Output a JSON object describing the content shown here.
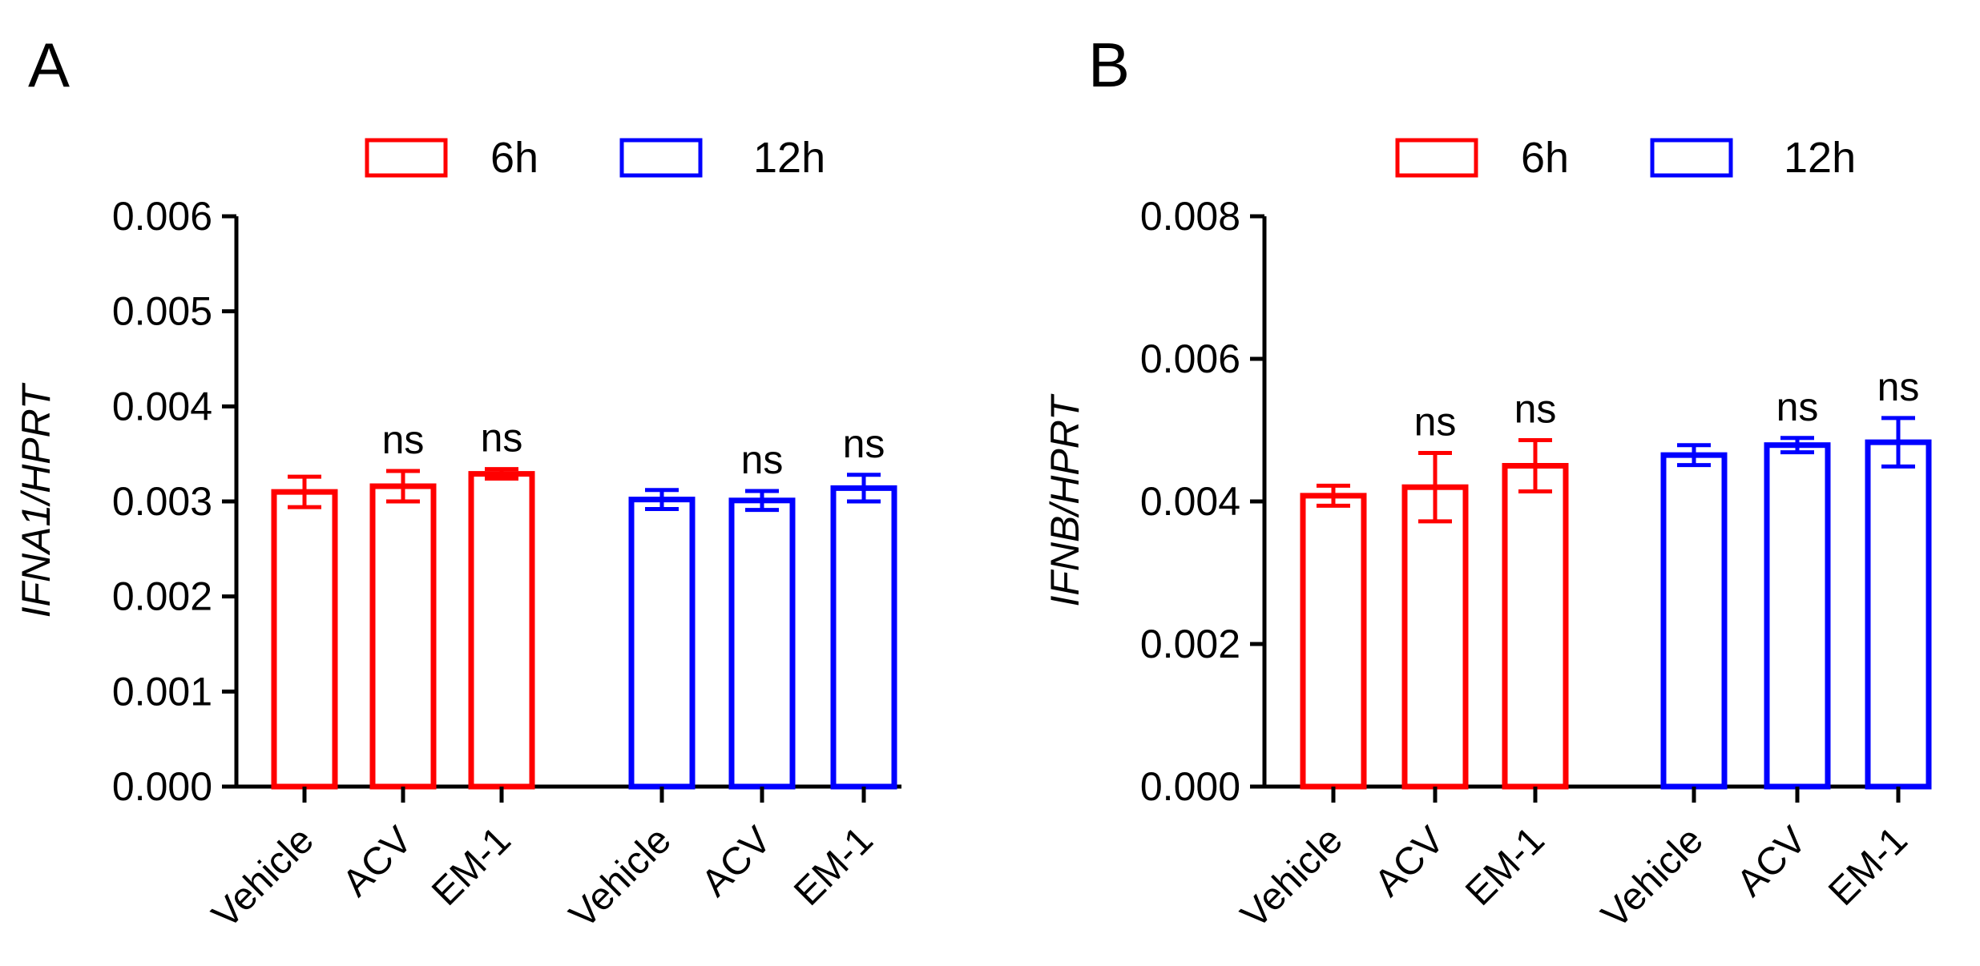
{
  "chart_data": [
    {
      "panel_label": "A",
      "type": "bar",
      "ylabel": "IFNA1/HPRT",
      "ylim": [
        0,
        0.006
      ],
      "yticks": [
        "0.000",
        "0.001",
        "0.002",
        "0.003",
        "0.004",
        "0.005",
        "0.006"
      ],
      "categories": [
        "Vehicle",
        "ACV",
        "EM-1"
      ],
      "legend_position": "top",
      "series": [
        {
          "name": "6h",
          "color": "#ff0000",
          "values": [
            0.0031,
            0.00316,
            0.00329
          ],
          "error": [
            0.00016,
            0.00016,
            5e-05
          ],
          "annotations": [
            "",
            "ns",
            "ns"
          ]
        },
        {
          "name": "12h",
          "color": "#0000ff",
          "values": [
            0.00302,
            0.00301,
            0.00314
          ],
          "error": [
            0.0001,
            0.0001,
            0.00014
          ],
          "annotations": [
            "",
            "ns",
            "ns"
          ]
        }
      ]
    },
    {
      "panel_label": "B",
      "type": "bar",
      "ylabel": "IFNB/HPRT",
      "ylim": [
        0,
        0.008
      ],
      "yticks": [
        "0.000",
        "0.002",
        "0.004",
        "0.006",
        "0.008"
      ],
      "categories": [
        "Vehicle",
        "ACV",
        "EM-1"
      ],
      "legend_position": "top",
      "series": [
        {
          "name": "6h",
          "color": "#ff0000",
          "values": [
            0.00408,
            0.0042,
            0.0045
          ],
          "error": [
            0.00014,
            0.00048,
            0.00036
          ],
          "annotations": [
            "",
            "ns",
            "ns"
          ]
        },
        {
          "name": "12h",
          "color": "#0000ff",
          "values": [
            0.00465,
            0.00479,
            0.00483
          ],
          "error": [
            0.00014,
            0.0001,
            0.00034
          ],
          "annotations": [
            "",
            "ns",
            "ns"
          ]
        }
      ]
    }
  ]
}
